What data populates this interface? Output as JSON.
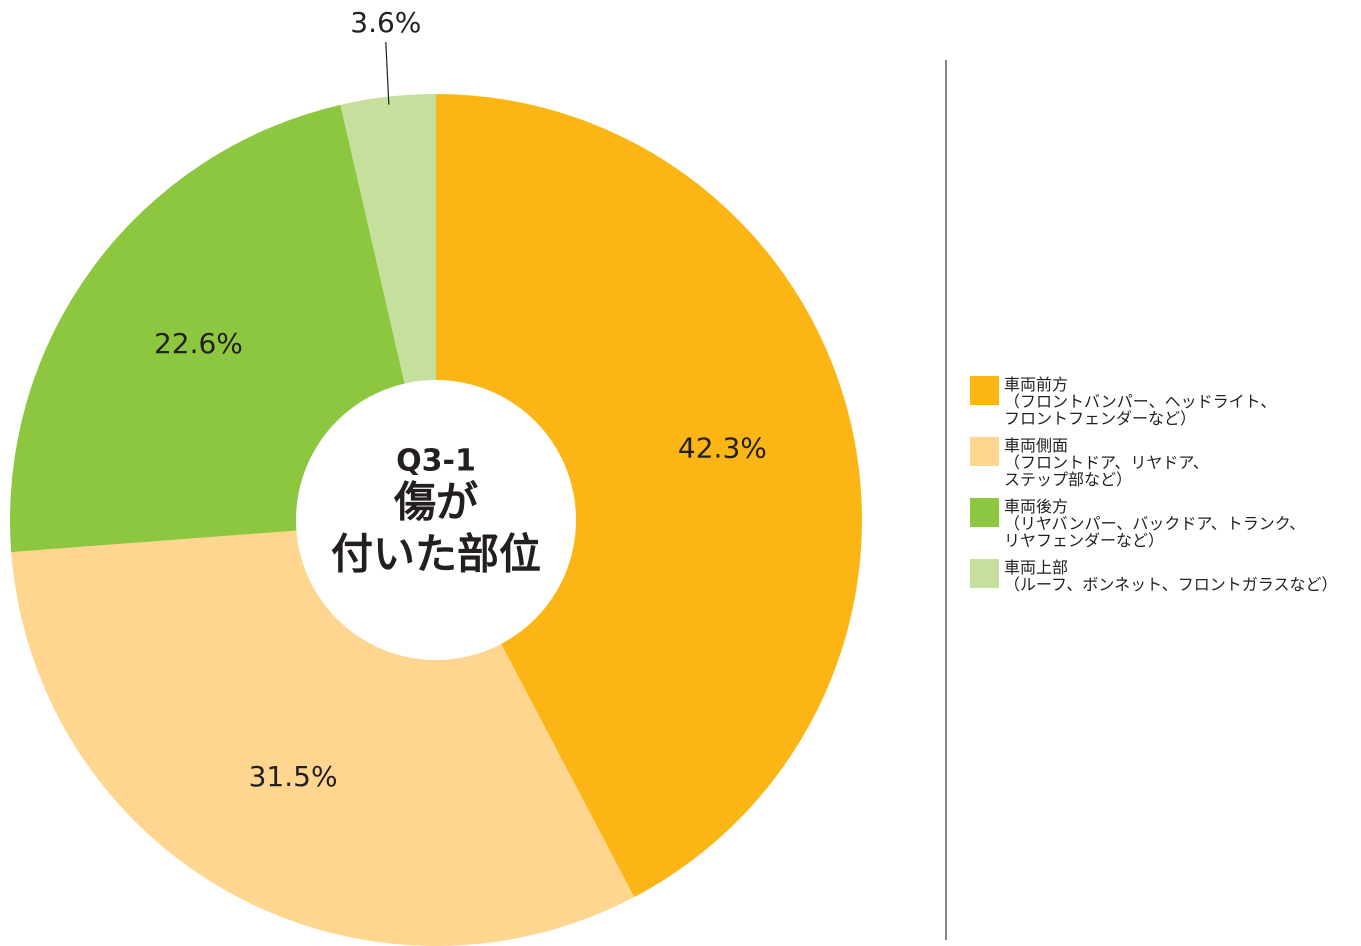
{
  "chart_data": {
    "type": "pie",
    "title": "Q3-1",
    "subtitle_lines": [
      "傷が",
      "付いた部位"
    ],
    "categories": [
      "車両前方\n（フロントバンパー、ヘッドライト、\nフロントフェンダーなど）",
      "車両側面\n（フロントドア、リヤドア、\nステップ部など）",
      "車両後方\n（リヤバンパー、バックドア、トランク、\nリヤフェンダーなど）",
      "車両上部\n（ルーフ、ボンネット、フロントガラスなど）"
    ],
    "values": [
      42.3,
      31.5,
      22.6,
      3.6
    ],
    "value_labels": [
      "42.3%",
      "31.5%",
      "22.6%",
      "3.6%"
    ],
    "colors": [
      "#fbb615",
      "#fed690",
      "#8dc63f",
      "#c5e09d"
    ],
    "donut": true,
    "legend": "right"
  }
}
